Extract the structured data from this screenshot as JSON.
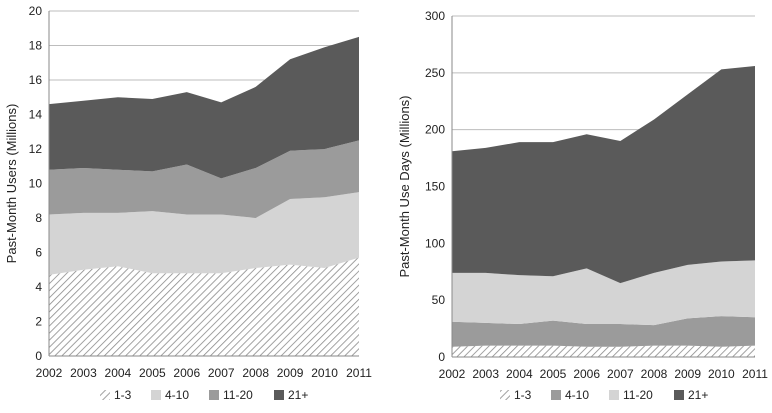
{
  "chart_data": [
    {
      "type": "area",
      "stacked": true,
      "x": [
        2002,
        2003,
        2004,
        2005,
        2006,
        2007,
        2008,
        2009,
        2010,
        2011
      ],
      "ylabel": "Past-Month Users (Millions)",
      "xlabel": "",
      "ylim": [
        0,
        20
      ],
      "yticks": [
        0,
        2,
        4,
        6,
        8,
        10,
        12,
        14,
        16,
        18,
        20
      ],
      "grid": true,
      "legend": "bottom",
      "series": [
        {
          "name": "1-3",
          "pattern": "diagonal-hatch",
          "color": "#7a7a7a",
          "values": [
            4.7,
            5.0,
            5.2,
            4.8,
            4.8,
            4.8,
            5.1,
            5.3,
            5.1,
            5.7
          ]
        },
        {
          "name": "4-10",
          "color": "#d4d4d4",
          "values": [
            3.5,
            3.3,
            3.1,
            3.6,
            3.4,
            3.4,
            2.9,
            3.8,
            4.1,
            3.8
          ]
        },
        {
          "name": "11-20",
          "color": "#9b9b9b",
          "values": [
            2.6,
            2.6,
            2.5,
            2.3,
            2.9,
            2.1,
            2.9,
            2.8,
            2.8,
            3.0
          ]
        },
        {
          "name": "21+",
          "color": "#5a5a5a",
          "values": [
            3.8,
            3.9,
            4.2,
            4.2,
            4.2,
            4.4,
            4.7,
            5.3,
            5.9,
            6.0
          ]
        }
      ]
    },
    {
      "type": "area",
      "stacked": true,
      "x": [
        2002,
        2003,
        2004,
        2005,
        2006,
        2007,
        2008,
        2009,
        2010,
        2011
      ],
      "ylabel": "Past-Month Use Days (Millions)",
      "xlabel": "",
      "ylim": [
        0,
        300
      ],
      "yticks": [
        0,
        50,
        100,
        150,
        200,
        250,
        300
      ],
      "grid": true,
      "legend": "bottom",
      "series": [
        {
          "name": "1-3",
          "pattern": "diagonal-hatch",
          "color": "#7a7a7a",
          "values": [
            9,
            10,
            10,
            10,
            9,
            9,
            10,
            10,
            9,
            10
          ]
        },
        {
          "name": "4-10",
          "color": "#9b9b9b",
          "values": [
            22,
            20,
            19,
            22,
            20,
            20,
            18,
            24,
            27,
            25
          ]
        },
        {
          "name": "11-20",
          "color": "#d4d4d4",
          "values": [
            43,
            44,
            43,
            39,
            49,
            36,
            46,
            47,
            48,
            50
          ]
        },
        {
          "name": "21+",
          "color": "#5a5a5a",
          "values": [
            107,
            110,
            117,
            118,
            118,
            125,
            135,
            150,
            169,
            171
          ]
        }
      ]
    }
  ]
}
